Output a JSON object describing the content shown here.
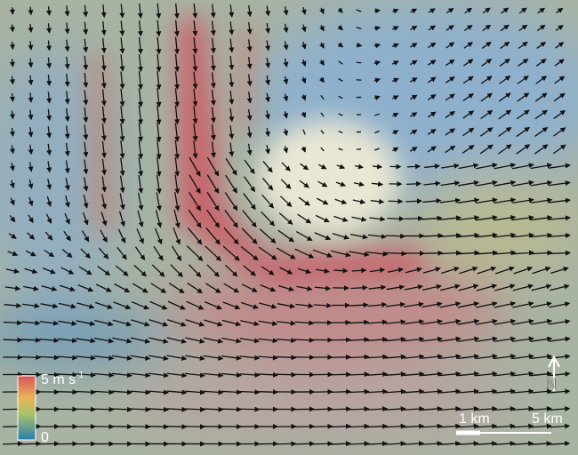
{
  "colorbar": {
    "max_label": "5 m s",
    "max_label_superscript": "-1",
    "min_label": "0"
  },
  "scale_bar": {
    "short_label": "1 km",
    "long_label": "5 km"
  },
  "north_arrow": {
    "label": "N"
  }
}
